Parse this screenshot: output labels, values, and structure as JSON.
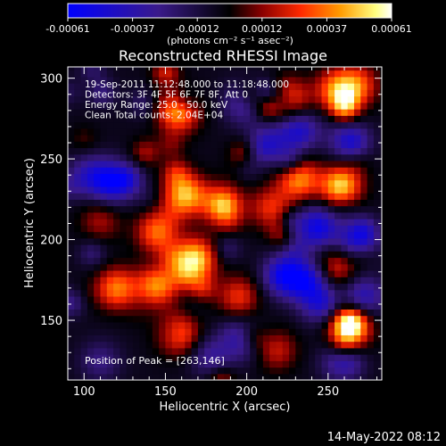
{
  "chart_data": {
    "type": "heatmap",
    "title": "Reconstructed RHESSI Image",
    "xlabel": "Heliocentric X (arcsec)",
    "ylabel": "Heliocentric Y (arcsec)",
    "xlim": [
      90,
      283
    ],
    "ylim": [
      113,
      307
    ],
    "xticks": [
      100,
      150,
      200,
      250
    ],
    "yticks": [
      150,
      200,
      250,
      300
    ],
    "annotations": [
      "19-Sep-2011 11:12:48.000 to 11:18:48.000",
      "Detectors: 3F 4F 5F 6F 7F 8F, Att 0",
      "Energy Range: 25.0 - 50.0 keV",
      "Clean     Total counts: 2.04E+04"
    ],
    "peak_label": "Position of Peak = [263,146]",
    "peak": [
      263,
      146
    ],
    "colorbar": {
      "ticks": [
        "-0.00061",
        "-0.00037",
        "-0.00012",
        "0.00012",
        "0.00037",
        "0.00061"
      ],
      "unit_label": "(photons cm⁻² s⁻¹ asec⁻²)",
      "range": [
        -0.00061,
        0.00061
      ],
      "colors": [
        "#0000ff",
        "#3a1a8a",
        "#000000",
        "#8a0000",
        "#ff2a00",
        "#ff9a00",
        "#ffff80",
        "#ffffff"
      ]
    },
    "bright_sources": [
      {
        "x": 158,
        "y": 280,
        "v": 0.0005
      },
      {
        "x": 225,
        "y": 287,
        "v": 0.00045
      },
      {
        "x": 255,
        "y": 293,
        "v": 0.0004
      },
      {
        "x": 268,
        "y": 296,
        "v": 0.00035
      },
      {
        "x": 162,
        "y": 228,
        "v": 0.00052
      },
      {
        "x": 185,
        "y": 222,
        "v": 0.0004
      },
      {
        "x": 232,
        "y": 238,
        "v": 0.00045
      },
      {
        "x": 258,
        "y": 233,
        "v": 0.0005
      },
      {
        "x": 168,
        "y": 188,
        "v": 0.00058
      },
      {
        "x": 145,
        "y": 205,
        "v": 0.0004
      },
      {
        "x": 120,
        "y": 170,
        "v": 0.00042
      },
      {
        "x": 145,
        "y": 172,
        "v": 0.00045
      },
      {
        "x": 158,
        "y": 142,
        "v": 0.0004
      },
      {
        "x": 195,
        "y": 165,
        "v": 0.0003
      },
      {
        "x": 215,
        "y": 220,
        "v": 0.0003
      },
      {
        "x": 110,
        "y": 212,
        "v": 0.0002
      },
      {
        "x": 263,
        "y": 146,
        "v": 0.00061
      },
      {
        "x": 255,
        "y": 183,
        "v": 0.0003
      },
      {
        "x": 218,
        "y": 132,
        "v": 0.00025
      }
    ],
    "dim_regions": [
      {
        "x": 118,
        "y": 236,
        "v": -0.0005
      },
      {
        "x": 103,
        "y": 240,
        "v": -0.0003
      },
      {
        "x": 243,
        "y": 208,
        "v": -0.0005
      },
      {
        "x": 223,
        "y": 178,
        "v": -0.0005
      },
      {
        "x": 238,
        "y": 175,
        "v": -0.0004
      },
      {
        "x": 232,
        "y": 268,
        "v": -0.0004
      },
      {
        "x": 213,
        "y": 260,
        "v": -0.0003
      },
      {
        "x": 198,
        "y": 285,
        "v": -0.0003
      },
      {
        "x": 198,
        "y": 138,
        "v": -0.0003
      },
      {
        "x": 178,
        "y": 128,
        "v": -0.00025
      },
      {
        "x": 258,
        "y": 125,
        "v": -0.0003
      },
      {
        "x": 268,
        "y": 200,
        "v": -0.0004
      },
      {
        "x": 272,
        "y": 165,
        "v": -0.00035
      },
      {
        "x": 262,
        "y": 262,
        "v": -0.0003
      },
      {
        "x": 245,
        "y": 160,
        "v": -0.0003
      },
      {
        "x": 110,
        "y": 125,
        "v": -0.0002
      }
    ]
  },
  "footer": {
    "date": "14-May-2022 08:12"
  }
}
